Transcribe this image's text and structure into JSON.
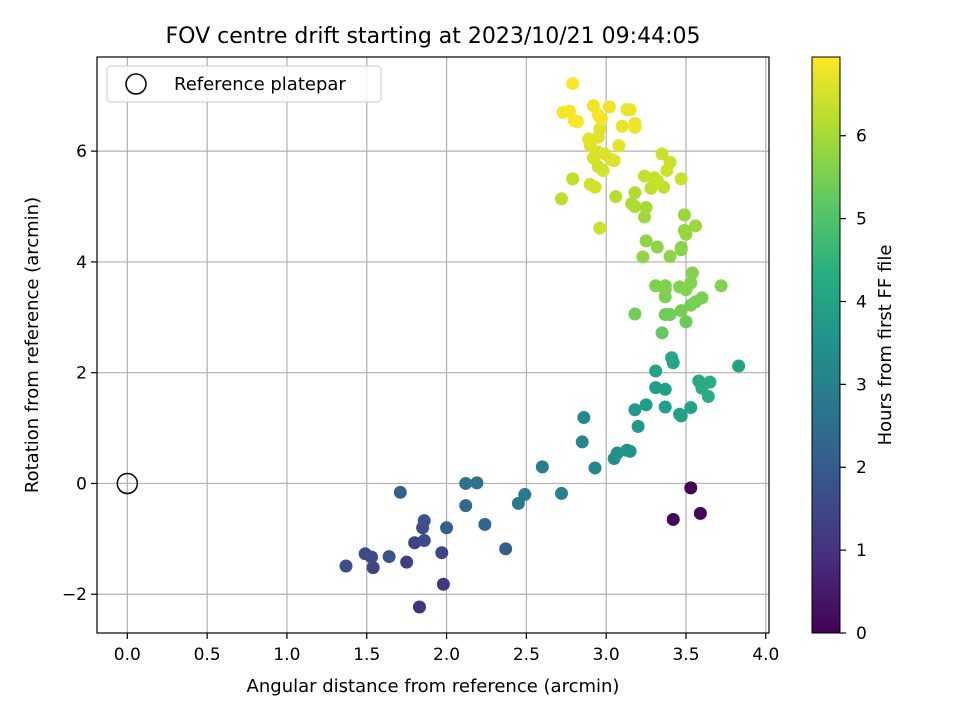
{
  "chart_data": {
    "type": "scatter",
    "title": "FOV centre drift starting at 2023/10/21 09:44:05",
    "xlabel": "Angular distance from reference (arcmin)",
    "ylabel": "Rotation from reference (arcmin)",
    "xlim": [
      -0.19,
      4.02
    ],
    "ylim": [
      -2.7,
      7.7
    ],
    "xticks": [
      "0.0",
      "0.5",
      "1.0",
      "1.5",
      "2.0",
      "2.5",
      "3.0",
      "3.5",
      "4.0"
    ],
    "xtick_values": [
      0,
      0.5,
      1,
      1.5,
      2,
      2.5,
      3,
      3.5,
      4
    ],
    "yticks": [
      "−2",
      "0",
      "2",
      "4",
      "6"
    ],
    "ytick_values": [
      -2,
      0,
      2,
      4,
      6
    ],
    "grid": true,
    "legend": {
      "placement": "top-left",
      "entries": [
        {
          "label": "Reference platepar",
          "marker": "open-circle"
        }
      ]
    },
    "reference_point": {
      "x": 0.0,
      "y": 0.0
    },
    "colorbar": {
      "label": "Hours from first FF file",
      "colormap": "viridis",
      "range": [
        0,
        6.95
      ],
      "ticks": [
        "0",
        "1",
        "2",
        "3",
        "4",
        "5",
        "6"
      ],
      "tick_values": [
        0,
        1,
        2,
        3,
        4,
        5,
        6
      ]
    },
    "points": [
      {
        "x": 3.53,
        "y": -0.08,
        "c": 0.05
      },
      {
        "x": 3.59,
        "y": -0.54,
        "c": 0.1
      },
      {
        "x": 3.42,
        "y": -0.65,
        "c": 0.15
      },
      {
        "x": 1.83,
        "y": -2.23,
        "c": 1.0
      },
      {
        "x": 1.98,
        "y": -1.82,
        "c": 1.1
      },
      {
        "x": 1.75,
        "y": -1.42,
        "c": 1.3
      },
      {
        "x": 1.54,
        "y": -1.52,
        "c": 1.4
      },
      {
        "x": 1.53,
        "y": -1.33,
        "c": 1.5
      },
      {
        "x": 1.49,
        "y": -1.27,
        "c": 1.6
      },
      {
        "x": 1.37,
        "y": -1.49,
        "c": 1.7
      },
      {
        "x": 1.8,
        "y": -1.07,
        "c": 1.35
      },
      {
        "x": 1.97,
        "y": -1.25,
        "c": 1.45
      },
      {
        "x": 1.86,
        "y": -1.03,
        "c": 1.55
      },
      {
        "x": 1.85,
        "y": -0.8,
        "c": 1.65
      },
      {
        "x": 1.86,
        "y": -0.67,
        "c": 1.75
      },
      {
        "x": 1.64,
        "y": -1.32,
        "c": 1.8
      },
      {
        "x": 2.0,
        "y": -0.8,
        "c": 2.05
      },
      {
        "x": 1.71,
        "y": -0.16,
        "c": 2.1
      },
      {
        "x": 2.37,
        "y": -1.18,
        "c": 2.0
      },
      {
        "x": 2.24,
        "y": -0.74,
        "c": 2.3
      },
      {
        "x": 2.12,
        "y": -0.4,
        "c": 2.4
      },
      {
        "x": 2.12,
        "y": 0.0,
        "c": 2.55
      },
      {
        "x": 2.19,
        "y": 0.01,
        "c": 2.65
      },
      {
        "x": 2.49,
        "y": -0.2,
        "c": 2.75
      },
      {
        "x": 2.45,
        "y": -0.36,
        "c": 2.85
      },
      {
        "x": 2.72,
        "y": -0.18,
        "c": 3.1
      },
      {
        "x": 2.6,
        "y": 0.3,
        "c": 3.0
      },
      {
        "x": 2.93,
        "y": 0.28,
        "c": 3.2
      },
      {
        "x": 2.85,
        "y": 0.75,
        "c": 3.25
      },
      {
        "x": 2.86,
        "y": 1.19,
        "c": 3.3
      },
      {
        "x": 3.05,
        "y": 0.45,
        "c": 3.45
      },
      {
        "x": 3.07,
        "y": 0.55,
        "c": 3.5
      },
      {
        "x": 3.13,
        "y": 0.6,
        "c": 3.55
      },
      {
        "x": 3.15,
        "y": 0.58,
        "c": 3.6
      },
      {
        "x": 3.2,
        "y": 1.03,
        "c": 3.7
      },
      {
        "x": 3.18,
        "y": 1.33,
        "c": 3.75
      },
      {
        "x": 3.25,
        "y": 1.42,
        "c": 3.8
      },
      {
        "x": 3.37,
        "y": 1.38,
        "c": 3.85
      },
      {
        "x": 3.31,
        "y": 1.73,
        "c": 3.9
      },
      {
        "x": 3.37,
        "y": 1.7,
        "c": 3.92
      },
      {
        "x": 3.47,
        "y": 1.22,
        "c": 3.95
      },
      {
        "x": 3.46,
        "y": 1.25,
        "c": 3.97
      },
      {
        "x": 3.53,
        "y": 1.37,
        "c": 4.0
      },
      {
        "x": 3.31,
        "y": 2.03,
        "c": 4.05
      },
      {
        "x": 3.42,
        "y": 2.18,
        "c": 4.1
      },
      {
        "x": 3.41,
        "y": 2.27,
        "c": 4.15
      },
      {
        "x": 3.58,
        "y": 1.85,
        "c": 4.2
      },
      {
        "x": 3.6,
        "y": 1.72,
        "c": 4.25
      },
      {
        "x": 3.64,
        "y": 1.57,
        "c": 4.27
      },
      {
        "x": 3.65,
        "y": 1.83,
        "c": 4.3
      },
      {
        "x": 3.83,
        "y": 2.12,
        "c": 4.0
      },
      {
        "x": 3.35,
        "y": 2.72,
        "c": 5.3
      },
      {
        "x": 3.5,
        "y": 2.92,
        "c": 5.35
      },
      {
        "x": 3.37,
        "y": 3.05,
        "c": 5.4
      },
      {
        "x": 3.4,
        "y": 3.05,
        "c": 5.42
      },
      {
        "x": 3.18,
        "y": 3.06,
        "c": 5.45
      },
      {
        "x": 3.47,
        "y": 3.12,
        "c": 5.5
      },
      {
        "x": 3.53,
        "y": 3.22,
        "c": 5.5
      },
      {
        "x": 3.56,
        "y": 3.28,
        "c": 5.52
      },
      {
        "x": 3.6,
        "y": 3.35,
        "c": 5.55
      },
      {
        "x": 3.37,
        "y": 3.37,
        "c": 5.55
      },
      {
        "x": 3.37,
        "y": 3.5,
        "c": 5.57
      },
      {
        "x": 3.31,
        "y": 3.57,
        "c": 5.58
      },
      {
        "x": 3.37,
        "y": 3.57,
        "c": 5.6
      },
      {
        "x": 3.46,
        "y": 3.55,
        "c": 5.6
      },
      {
        "x": 3.5,
        "y": 3.5,
        "c": 5.62
      },
      {
        "x": 3.53,
        "y": 3.62,
        "c": 5.62
      },
      {
        "x": 3.54,
        "y": 3.8,
        "c": 5.65
      },
      {
        "x": 3.72,
        "y": 3.57,
        "c": 5.65
      },
      {
        "x": 3.47,
        "y": 4.22,
        "c": 5.7
      },
      {
        "x": 3.47,
        "y": 4.26,
        "c": 5.72
      },
      {
        "x": 3.4,
        "y": 4.1,
        "c": 5.75
      },
      {
        "x": 3.32,
        "y": 4.27,
        "c": 5.75
      },
      {
        "x": 3.25,
        "y": 4.38,
        "c": 5.8
      },
      {
        "x": 3.23,
        "y": 4.09,
        "c": 5.82
      },
      {
        "x": 3.5,
        "y": 4.5,
        "c": 5.85
      },
      {
        "x": 3.49,
        "y": 4.57,
        "c": 5.85
      },
      {
        "x": 3.49,
        "y": 4.85,
        "c": 5.88
      },
      {
        "x": 3.56,
        "y": 4.65,
        "c": 5.9
      },
      {
        "x": 3.24,
        "y": 4.81,
        "c": 5.95
      },
      {
        "x": 3.25,
        "y": 4.98,
        "c": 6.0
      },
      {
        "x": 3.18,
        "y": 5.0,
        "c": 6.05
      },
      {
        "x": 3.16,
        "y": 5.05,
        "c": 6.1
      },
      {
        "x": 3.18,
        "y": 5.25,
        "c": 6.15
      },
      {
        "x": 3.06,
        "y": 5.18,
        "c": 6.2
      },
      {
        "x": 2.72,
        "y": 5.14,
        "c": 6.25
      },
      {
        "x": 2.79,
        "y": 5.5,
        "c": 6.3
      },
      {
        "x": 3.28,
        "y": 5.33,
        "c": 6.3
      },
      {
        "x": 3.36,
        "y": 5.35,
        "c": 6.32
      },
      {
        "x": 3.24,
        "y": 5.55,
        "c": 6.35
      },
      {
        "x": 3.3,
        "y": 5.52,
        "c": 6.35
      },
      {
        "x": 3.32,
        "y": 5.47,
        "c": 6.38
      },
      {
        "x": 3.47,
        "y": 5.5,
        "c": 6.4
      },
      {
        "x": 3.4,
        "y": 5.8,
        "c": 6.4
      },
      {
        "x": 3.35,
        "y": 5.95,
        "c": 6.42
      },
      {
        "x": 3.38,
        "y": 5.65,
        "c": 6.45
      },
      {
        "x": 2.96,
        "y": 4.61,
        "c": 6.45
      },
      {
        "x": 2.9,
        "y": 5.4,
        "c": 6.48
      },
      {
        "x": 2.93,
        "y": 5.35,
        "c": 6.5
      },
      {
        "x": 2.95,
        "y": 5.72,
        "c": 6.5
      },
      {
        "x": 2.98,
        "y": 5.65,
        "c": 6.52
      },
      {
        "x": 2.92,
        "y": 5.88,
        "c": 6.55
      },
      {
        "x": 2.95,
        "y": 5.98,
        "c": 6.55
      },
      {
        "x": 2.99,
        "y": 5.95,
        "c": 6.58
      },
      {
        "x": 3.03,
        "y": 5.85,
        "c": 6.6
      },
      {
        "x": 3.05,
        "y": 5.83,
        "c": 6.6
      },
      {
        "x": 2.9,
        "y": 6.1,
        "c": 6.62
      },
      {
        "x": 2.89,
        "y": 6.22,
        "c": 6.65
      },
      {
        "x": 2.95,
        "y": 6.25,
        "c": 6.65
      },
      {
        "x": 2.96,
        "y": 6.4,
        "c": 6.68
      },
      {
        "x": 3.08,
        "y": 6.1,
        "c": 6.7
      },
      {
        "x": 3.1,
        "y": 6.45,
        "c": 6.72
      },
      {
        "x": 3.13,
        "y": 6.75,
        "c": 6.75
      },
      {
        "x": 3.15,
        "y": 6.75,
        "c": 6.75
      },
      {
        "x": 3.18,
        "y": 6.5,
        "c": 6.78
      },
      {
        "x": 3.18,
        "y": 6.43,
        "c": 6.8
      },
      {
        "x": 3.02,
        "y": 6.8,
        "c": 6.8
      },
      {
        "x": 2.92,
        "y": 6.82,
        "c": 6.82
      },
      {
        "x": 2.95,
        "y": 6.65,
        "c": 6.85
      },
      {
        "x": 2.97,
        "y": 6.58,
        "c": 6.85
      },
      {
        "x": 2.73,
        "y": 6.7,
        "c": 6.88
      },
      {
        "x": 2.77,
        "y": 6.72,
        "c": 6.9
      },
      {
        "x": 2.8,
        "y": 6.55,
        "c": 6.9
      },
      {
        "x": 2.82,
        "y": 6.53,
        "c": 6.92
      },
      {
        "x": 2.79,
        "y": 7.22,
        "c": 6.95
      }
    ]
  }
}
